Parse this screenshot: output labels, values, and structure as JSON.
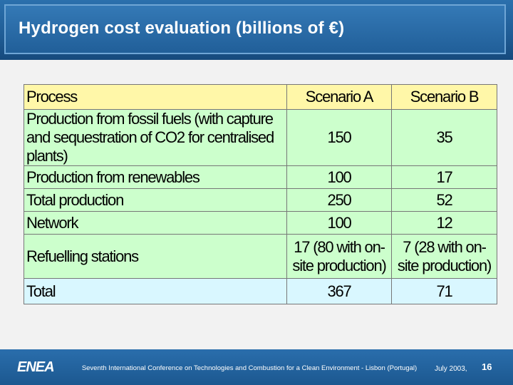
{
  "slide": {
    "title": "Hydrogen cost evaluation (billions of €)"
  },
  "table": {
    "headers": [
      "Process",
      "Scenario A",
      "Scenario B"
    ],
    "rows": [
      {
        "process": "Production from fossil fuels (with capture and sequestration of CO2 for centralised plants)",
        "a": "150",
        "b": "35"
      },
      {
        "process": "Production from renewables",
        "a": "100",
        "b": "17"
      },
      {
        "process": "Total production",
        "a": "250",
        "b": "52"
      },
      {
        "process": "Network",
        "a": "100",
        "b": "12"
      },
      {
        "process": "Refuelling stations",
        "a": "17 (80 with on-site production)",
        "b": "7 (28 with on-site production)"
      }
    ],
    "total": {
      "process": "Total",
      "a": "367",
      "b": "71"
    }
  },
  "footer": {
    "logo": "ENEA",
    "conference": "Seventh International Conference on Technologies and Combustion for a Clean Environment - Lisbon (Portugal)",
    "date": "July 2003,",
    "page_number": "16"
  }
}
